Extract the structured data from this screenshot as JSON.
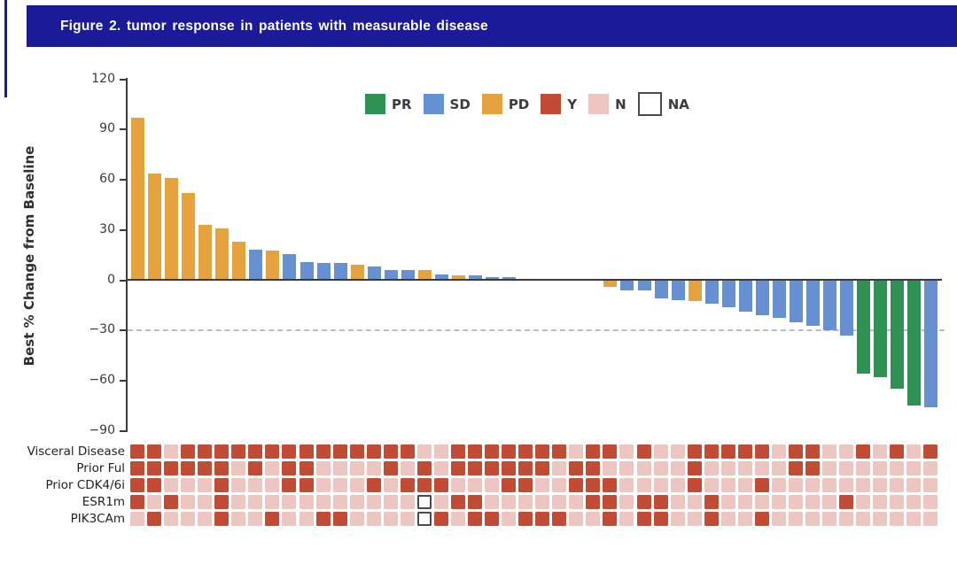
{
  "header": {
    "title": "Figure 2. tumor response in patients with measurable disease"
  },
  "chart_data": {
    "type": "bar",
    "subtype": "waterfall-tumor-response",
    "title": "",
    "xlabel": "",
    "ylabel": "Best % Change from Baseline",
    "ylim": [
      -90,
      120
    ],
    "yticks": [
      120,
      90,
      60,
      30,
      0,
      -30,
      -60,
      -90
    ],
    "reference_line_y": -30,
    "grid": "off",
    "legend_position": "top-center",
    "legend": [
      {
        "label": "PR",
        "color": "#2e9255"
      },
      {
        "label": "SD",
        "color": "#6590d2"
      },
      {
        "label": "PD",
        "color": "#e6a23c"
      },
      {
        "label": "Y",
        "color": "#c24b35"
      },
      {
        "label": "N",
        "color": "#edc6c1"
      },
      {
        "label": "NA",
        "color": "#ffffff"
      }
    ],
    "response_colors": {
      "PR": "#2e9255",
      "SD": "#6590d2",
      "PD": "#e6a23c"
    },
    "annotation_colors": {
      "Y": "#c24b35",
      "N": "#edc6c1",
      "NA": "#ffffff"
    },
    "bars": {
      "responses": [
        "PD",
        "PD",
        "PD",
        "PD",
        "PD",
        "PD",
        "PD",
        "SD",
        "PD",
        "SD",
        "SD",
        "SD",
        "SD",
        "PD",
        "SD",
        "SD",
        "SD",
        "PD",
        "SD",
        "PD",
        "SD",
        "SD",
        "SD",
        "SD",
        "SD",
        "SD",
        "SD",
        "SD",
        "PD",
        "SD",
        "SD",
        "SD",
        "SD",
        "PD",
        "SD",
        "SD",
        "SD",
        "SD",
        "SD",
        "SD",
        "SD",
        "SD",
        "SD",
        "PR",
        "PR",
        "PR",
        "PR",
        "SD"
      ],
      "values": [
        97,
        64,
        61,
        52,
        33,
        31,
        23,
        18,
        17.5,
        15.5,
        11,
        10.5,
        10.5,
        9,
        8,
        6,
        6,
        6,
        3.5,
        3,
        3,
        2,
        2,
        0.5,
        0,
        0,
        0,
        0,
        -4,
        -6,
        -6,
        -11,
        -12,
        -12.5,
        -14,
        -16,
        -19,
        -21,
        -22.5,
        -25,
        -27,
        -30,
        -33,
        -56,
        -58,
        -65,
        -75,
        -76
      ]
    },
    "annotation_rows": [
      {
        "label": "Visceral Disease",
        "values": [
          "Y",
          "Y",
          "N",
          "Y",
          "Y",
          "Y",
          "Y",
          "Y",
          "Y",
          "Y",
          "Y",
          "Y",
          "Y",
          "Y",
          "Y",
          "Y",
          "Y",
          "N",
          "N",
          "Y",
          "Y",
          "Y",
          "Y",
          "Y",
          "Y",
          "Y",
          "N",
          "Y",
          "Y",
          "N",
          "Y",
          "N",
          "N",
          "Y",
          "Y",
          "Y",
          "Y",
          "Y",
          "N",
          "Y",
          "Y",
          "N",
          "N",
          "Y",
          "N",
          "Y",
          "N",
          "Y"
        ]
      },
      {
        "label": "Prior Ful",
        "values": [
          "Y",
          "Y",
          "Y",
          "Y",
          "Y",
          "Y",
          "N",
          "Y",
          "N",
          "Y",
          "Y",
          "N",
          "N",
          "N",
          "N",
          "Y",
          "N",
          "Y",
          "N",
          "Y",
          "Y",
          "Y",
          "Y",
          "Y",
          "Y",
          "N",
          "Y",
          "Y",
          "N",
          "N",
          "N",
          "N",
          "N",
          "Y",
          "N",
          "N",
          "N",
          "N",
          "N",
          "Y",
          "Y",
          "N",
          "N",
          "N",
          "N",
          "N",
          "N",
          "N"
        ]
      },
      {
        "label": "Prior CDK4/6i",
        "values": [
          "Y",
          "Y",
          "N",
          "N",
          "N",
          "Y",
          "N",
          "N",
          "N",
          "Y",
          "Y",
          "N",
          "N",
          "N",
          "Y",
          "N",
          "Y",
          "Y",
          "Y",
          "N",
          "N",
          "N",
          "Y",
          "Y",
          "N",
          "N",
          "Y",
          "Y",
          "Y",
          "N",
          "N",
          "N",
          "N",
          "Y",
          "N",
          "N",
          "N",
          "Y",
          "N",
          "N",
          "N",
          "N",
          "N",
          "N",
          "N",
          "N",
          "N",
          "N"
        ]
      },
      {
        "label": "ESR1m",
        "values": [
          "Y",
          "N",
          "Y",
          "N",
          "N",
          "Y",
          "N",
          "N",
          "N",
          "N",
          "N",
          "N",
          "N",
          "N",
          "N",
          "N",
          "N",
          "NA",
          "N",
          "Y",
          "Y",
          "N",
          "N",
          "N",
          "N",
          "N",
          "N",
          "Y",
          "Y",
          "N",
          "Y",
          "Y",
          "N",
          "N",
          "Y",
          "N",
          "N",
          "N",
          "N",
          "N",
          "N",
          "N",
          "Y",
          "N",
          "N",
          "N",
          "N",
          "N"
        ]
      },
      {
        "label": "PIK3CAm",
        "values": [
          "N",
          "Y",
          "N",
          "N",
          "N",
          "Y",
          "N",
          "N",
          "Y",
          "N",
          "N",
          "Y",
          "Y",
          "N",
          "N",
          "N",
          "N",
          "NA",
          "Y",
          "N",
          "Y",
          "Y",
          "N",
          "Y",
          "Y",
          "Y",
          "N",
          "N",
          "Y",
          "N",
          "Y",
          "Y",
          "N",
          "N",
          "Y",
          "N",
          "N",
          "Y",
          "N",
          "N",
          "N",
          "N",
          "N",
          "N",
          "N",
          "N",
          "N",
          "N"
        ]
      }
    ]
  }
}
